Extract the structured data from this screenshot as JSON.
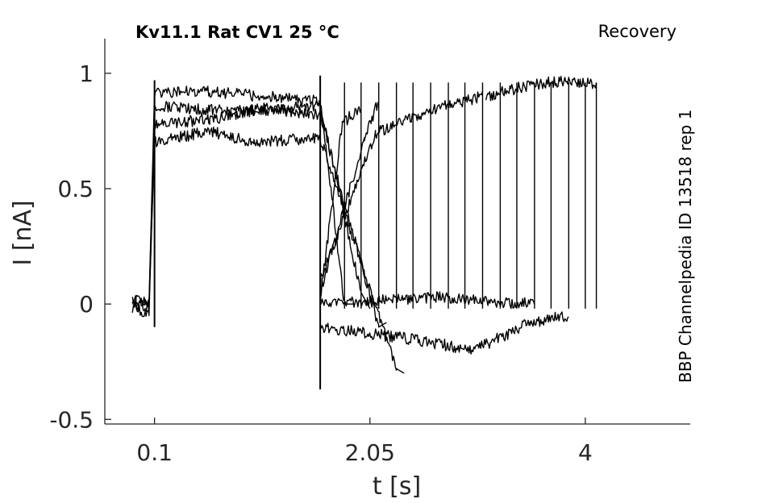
{
  "chart_data": {
    "type": "line",
    "title": "Kv11.1  Rat  CV1  25 °C",
    "protocol_label": "Recovery",
    "side_label": "BBP Channelpedia ID 13518 rep 1",
    "xlabel": "t [s]",
    "ylabel": "I [nA]",
    "xlim": [
      -0.35,
      4.95
    ],
    "ylim": [
      -0.52,
      1.15
    ],
    "x_ticks": [
      0.1,
      2.05,
      4
    ],
    "x_tick_labels": [
      "0.1",
      "2.05",
      "4"
    ],
    "y_ticks": [
      -0.5,
      0,
      0.5,
      1
    ],
    "y_tick_labels": [
      "-0.5",
      "0",
      "0.5",
      "1"
    ],
    "grid": false,
    "legend": "none",
    "line_color": "#000000",
    "sweep_step_start_s": 0.1,
    "sweep_step_end_s": 1.6,
    "sweep_end_times_s": [
      1.82,
      1.97,
      2.13,
      2.29,
      2.44,
      2.6,
      2.76,
      2.91,
      3.07,
      3.23,
      3.38,
      3.54,
      3.69,
      3.85,
      4.0,
      4.1
    ],
    "series": [
      {
        "values": [
          [
            -0.1,
            0.02
          ],
          [
            0.05,
            0.0
          ],
          [
            0.1,
            0.92
          ],
          [
            0.6,
            0.92
          ],
          [
            1.1,
            0.9
          ],
          [
            1.6,
            0.88
          ],
          [
            1.82,
            0.0
          ],
          [
            1.9,
            0.0
          ]
        ]
      },
      {
        "values": [
          [
            -0.1,
            0.03
          ],
          [
            0.05,
            -0.02
          ],
          [
            0.1,
            0.86
          ],
          [
            0.6,
            0.84
          ],
          [
            1.1,
            0.84
          ],
          [
            1.6,
            0.86
          ],
          [
            1.97,
            0.05
          ],
          [
            2.05,
            -0.02
          ]
        ]
      },
      {
        "values": [
          [
            -0.1,
            0.0
          ],
          [
            0.05,
            -0.05
          ],
          [
            0.1,
            0.78
          ],
          [
            0.6,
            0.8
          ],
          [
            1.1,
            0.85
          ],
          [
            1.6,
            0.82
          ],
          [
            2.13,
            -0.1
          ],
          [
            2.2,
            -0.08
          ]
        ]
      },
      {
        "values": [
          [
            -0.1,
            -0.02
          ],
          [
            0.05,
            0.0
          ],
          [
            0.1,
            0.7
          ],
          [
            0.6,
            0.75
          ],
          [
            1.0,
            0.7
          ],
          [
            1.6,
            0.72
          ],
          [
            2.29,
            -0.28
          ],
          [
            2.36,
            -0.3
          ]
        ]
      },
      {
        "values": [
          [
            1.6,
            0.02
          ],
          [
            1.8,
            0.78
          ],
          [
            1.97,
            0.86
          ]
        ]
      },
      {
        "values": [
          [
            1.6,
            0.05
          ],
          [
            2.0,
            0.72
          ],
          [
            2.13,
            0.88
          ]
        ]
      },
      {
        "values": [
          [
            1.6,
            0.1
          ],
          [
            2.1,
            0.74
          ],
          [
            2.6,
            0.84
          ],
          [
            3.07,
            0.9
          ]
        ]
      },
      {
        "values": [
          [
            1.6,
            0.0
          ],
          [
            2.7,
            0.03
          ],
          [
            3.38,
            0.0
          ],
          [
            3.54,
            0.02
          ]
        ]
      },
      {
        "values": [
          [
            1.6,
            -0.1
          ],
          [
            2.4,
            -0.15
          ],
          [
            3.0,
            -0.2
          ],
          [
            3.5,
            -0.08
          ],
          [
            3.85,
            -0.05
          ]
        ]
      },
      {
        "values": [
          [
            3.1,
            0.9
          ],
          [
            3.5,
            0.95
          ],
          [
            3.85,
            0.97
          ],
          [
            4.1,
            0.95
          ]
        ]
      }
    ]
  }
}
